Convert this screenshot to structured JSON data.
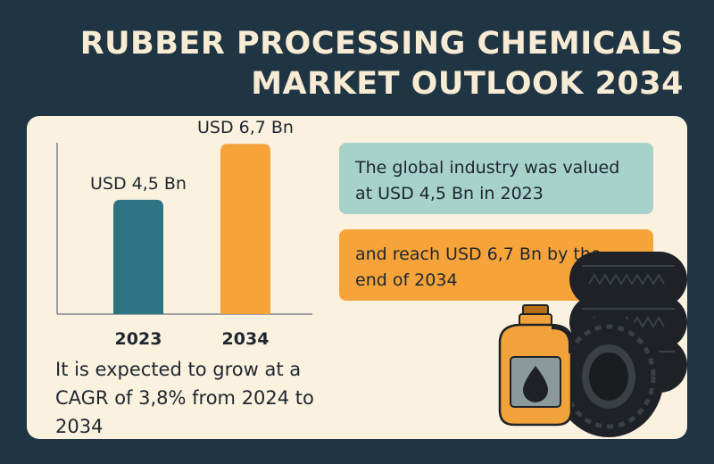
{
  "title_line1": "RUBBER PROCESSING CHEMICALS",
  "title_line2": "MARKET OUTLOOK 2034",
  "chart_data": {
    "type": "bar",
    "categories": [
      "2023",
      "2034"
    ],
    "values": [
      4.5,
      6.7
    ],
    "data_labels": [
      "USD 4,5 Bn",
      "USD 6,7 Bn"
    ],
    "colors": [
      "#2e7382",
      "#f6a43a"
    ],
    "unit": "USD Bn",
    "ylim": [
      0,
      7.2
    ],
    "grid": false,
    "legend": "none"
  },
  "cagr_text": "It is expected to grow at a CAGR of 3,8% from 2024 to 2034",
  "box_2023_text": "The global industry was valued at USD 4,5 Bn in 2023",
  "box_2034_text": "and reach USD 6,7 Bn by the end of 2034",
  "illustration_icons": [
    "oil-jerrycan-icon",
    "tire-stack-icon"
  ]
}
